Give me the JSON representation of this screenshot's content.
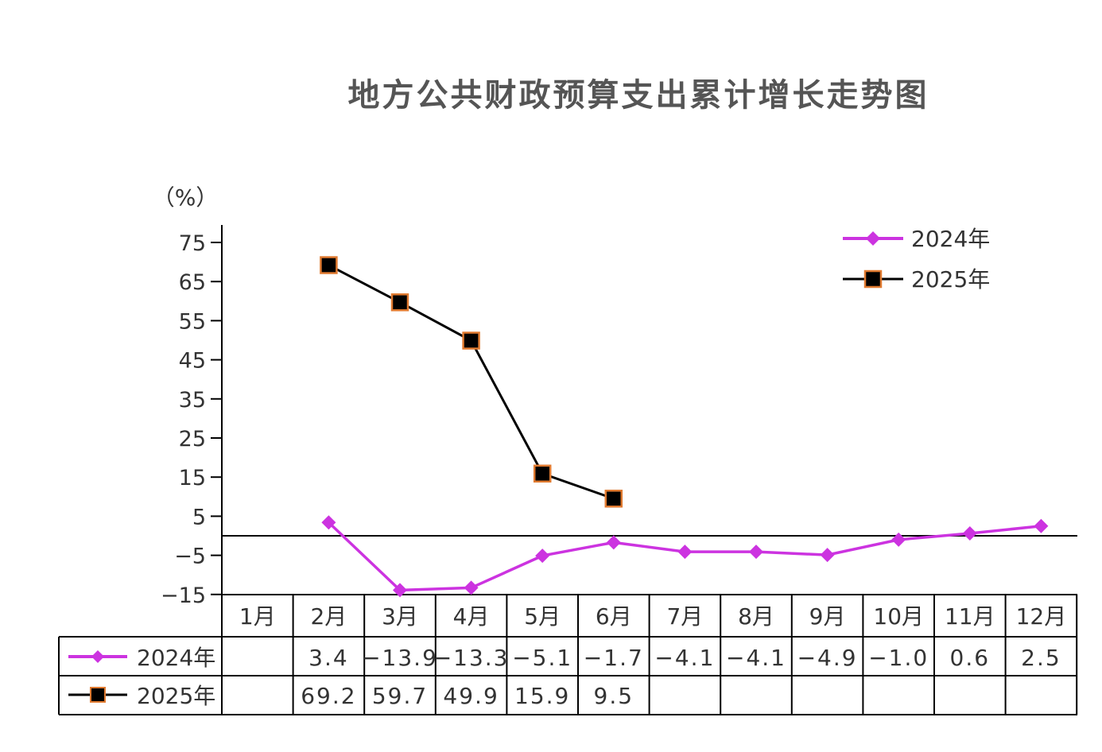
{
  "chart_data": {
    "type": "line",
    "title": "地方公共财政预算支出累计增长走势图",
    "ylabel": "（%）",
    "yticks": [
      75,
      65,
      55,
      45,
      35,
      25,
      15,
      5,
      -5,
      -15
    ],
    "ylim": [
      -15,
      80
    ],
    "categories": [
      "1月",
      "2月",
      "3月",
      "4月",
      "5月",
      "6月",
      "7月",
      "8月",
      "9月",
      "10月",
      "11月",
      "12月"
    ],
    "series": [
      {
        "name": "2024年",
        "color": "#cc33e0",
        "marker": "diamond",
        "values": [
          null,
          3.4,
          -13.9,
          -13.3,
          -5.1,
          -1.7,
          -4.1,
          -4.1,
          -4.9,
          -1.0,
          0.6,
          2.5
        ],
        "labels": [
          "",
          "3.4",
          "-13.9",
          "-13.3",
          "-5.1",
          "-1.7",
          "-4.1",
          "-4.1",
          "-4.9",
          "-1.0",
          "0.6",
          "2.5"
        ]
      },
      {
        "name": "2025年",
        "color": "#000000",
        "marker_edge": "#e07a30",
        "marker": "square",
        "values": [
          null,
          69.2,
          59.7,
          49.9,
          15.9,
          9.5,
          null,
          null,
          null,
          null,
          null,
          null
        ],
        "labels": [
          "",
          "69.2",
          "59.7",
          "49.9",
          "15.9",
          "9.5",
          "",
          "",
          "",
          "",
          "",
          ""
        ]
      }
    ],
    "legend_position": "top-right",
    "grid": false
  }
}
